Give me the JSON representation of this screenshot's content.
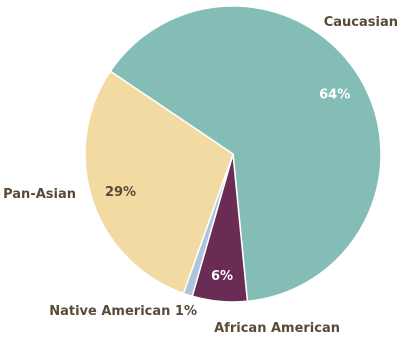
{
  "chart_data": {
    "type": "pie",
    "title": "",
    "start_angle_deg": -56,
    "direction": "clockwise",
    "slices": [
      {
        "label": "Caucasian",
        "value": 64,
        "percent_label": "64%",
        "color": "#83bdb6",
        "percent_color": "#ffffff"
      },
      {
        "label": "African American",
        "value": 6,
        "percent_label": "6%",
        "color": "#6a2c55",
        "percent_color": "#ffffff"
      },
      {
        "label": "Native American 1%",
        "value": 1,
        "percent_label": "",
        "color": "#aec4dd",
        "percent_color": "#5a4a38"
      },
      {
        "label": "Pan-Asian",
        "value": 29,
        "percent_label": "29%",
        "color": "#f1dba3",
        "percent_color": "#5a4a38"
      }
    ]
  }
}
